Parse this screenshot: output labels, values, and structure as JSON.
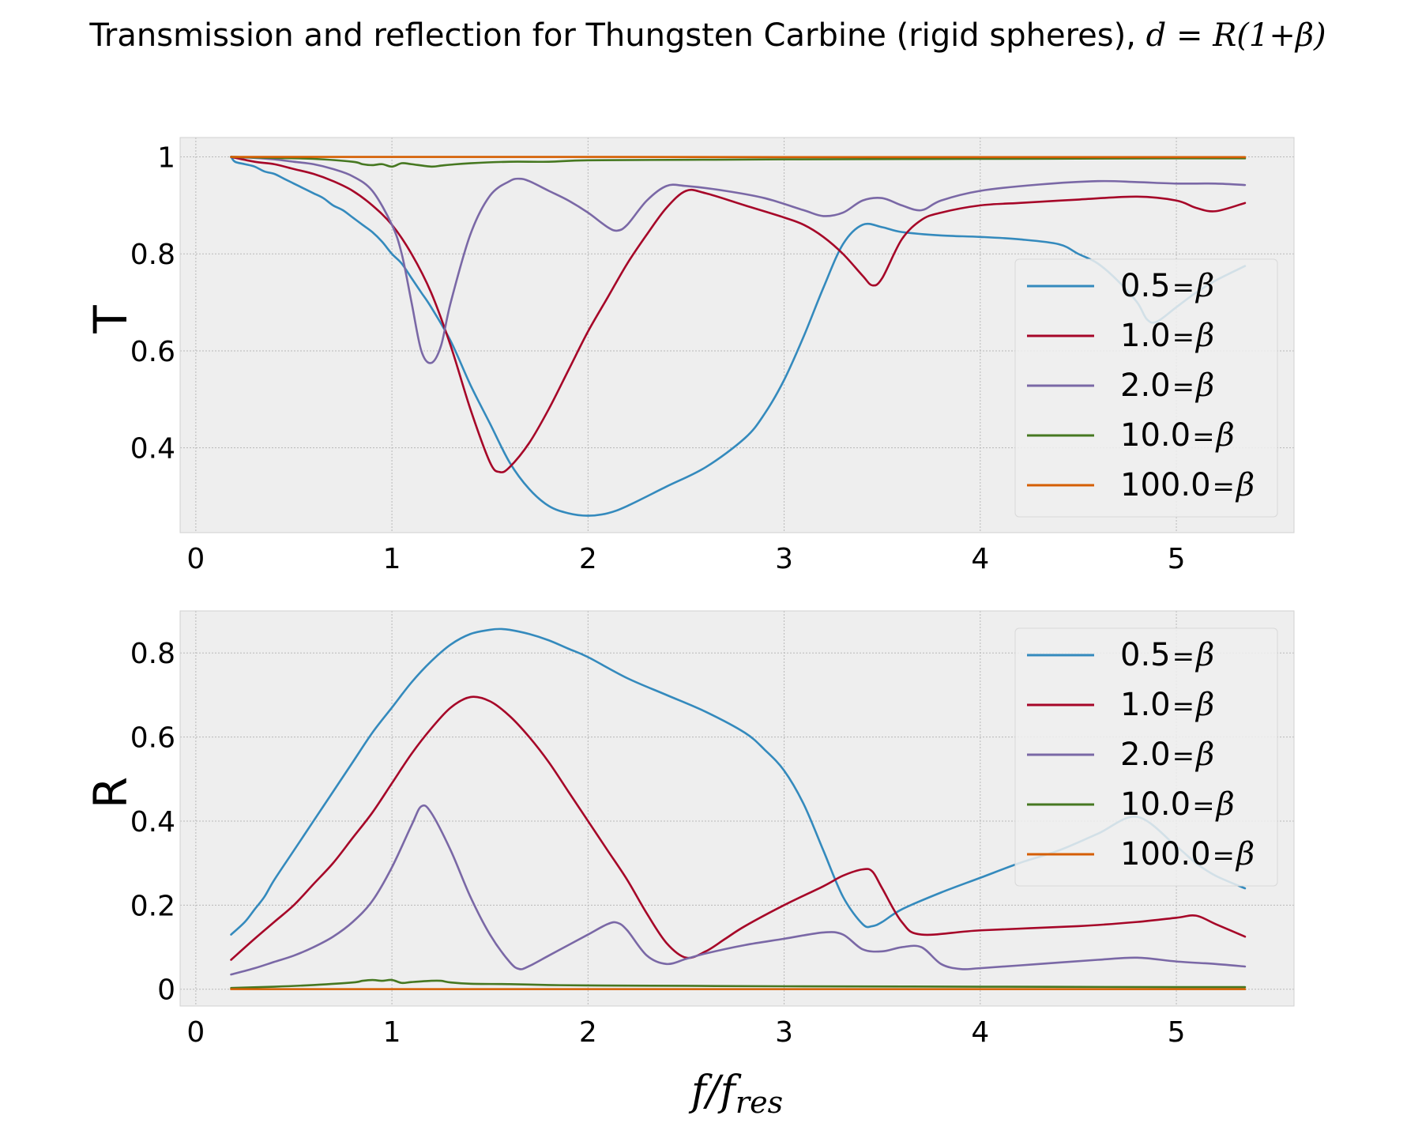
{
  "figure": {
    "title_text": "Transmission and reflection for Thungsten Carbine (rigid spheres), ",
    "title_math": "d = R(1+β)"
  },
  "chart_data": [
    {
      "type": "line",
      "ylabel": "T",
      "xlabel": "",
      "xlim": [
        -0.08,
        5.6
      ],
      "ylim": [
        0.225,
        1.04
      ],
      "xticks": [
        0,
        1,
        2,
        3,
        4,
        5
      ],
      "yticks": [
        0.4,
        0.6,
        0.8,
        1.0
      ],
      "grid": true,
      "legend_position": "lower-right",
      "series": [
        {
          "name": "0.5 = β",
          "color": "#348ABD",
          "x": [
            0.18,
            0.2,
            0.25,
            0.3,
            0.35,
            0.4,
            0.45,
            0.5,
            0.55,
            0.6,
            0.65,
            0.7,
            0.75,
            0.8,
            0.85,
            0.9,
            0.95,
            1.0,
            1.05,
            1.1,
            1.15,
            1.2,
            1.3,
            1.4,
            1.5,
            1.6,
            1.7,
            1.8,
            1.9,
            2.0,
            2.1,
            2.2,
            2.4,
            2.6,
            2.8,
            2.9,
            3.0,
            3.1,
            3.2,
            3.3,
            3.4,
            3.5,
            3.6,
            3.8,
            4.0,
            4.2,
            4.4,
            4.5,
            4.6,
            4.7,
            4.8,
            4.85,
            4.9,
            5.0,
            5.1,
            5.2,
            5.35
          ],
          "y": [
            1.0,
            0.99,
            0.985,
            0.98,
            0.97,
            0.965,
            0.955,
            0.945,
            0.935,
            0.925,
            0.915,
            0.9,
            0.89,
            0.875,
            0.86,
            0.845,
            0.825,
            0.8,
            0.78,
            0.75,
            0.72,
            0.69,
            0.62,
            0.53,
            0.45,
            0.37,
            0.315,
            0.28,
            0.265,
            0.26,
            0.265,
            0.28,
            0.32,
            0.36,
            0.42,
            0.47,
            0.54,
            0.63,
            0.73,
            0.82,
            0.86,
            0.855,
            0.845,
            0.838,
            0.835,
            0.83,
            0.82,
            0.8,
            0.78,
            0.745,
            0.7,
            0.665,
            0.66,
            0.69,
            0.72,
            0.745,
            0.775
          ]
        },
        {
          "name": "1.0 = β",
          "color": "#A60628",
          "x": [
            0.18,
            0.3,
            0.4,
            0.5,
            0.6,
            0.7,
            0.8,
            0.9,
            1.0,
            1.1,
            1.2,
            1.3,
            1.4,
            1.5,
            1.55,
            1.6,
            1.7,
            1.8,
            1.9,
            2.0,
            2.1,
            2.2,
            2.3,
            2.4,
            2.5,
            2.6,
            2.8,
            3.0,
            3.1,
            3.2,
            3.3,
            3.4,
            3.45,
            3.5,
            3.6,
            3.7,
            3.8,
            4.0,
            4.2,
            4.5,
            4.8,
            5.0,
            5.1,
            5.2,
            5.35
          ],
          "y": [
            1.0,
            0.99,
            0.985,
            0.975,
            0.965,
            0.95,
            0.93,
            0.9,
            0.86,
            0.8,
            0.72,
            0.61,
            0.48,
            0.37,
            0.35,
            0.36,
            0.41,
            0.48,
            0.56,
            0.64,
            0.71,
            0.78,
            0.84,
            0.895,
            0.93,
            0.925,
            0.9,
            0.875,
            0.86,
            0.835,
            0.8,
            0.755,
            0.735,
            0.75,
            0.83,
            0.87,
            0.885,
            0.9,
            0.905,
            0.912,
            0.918,
            0.91,
            0.895,
            0.888,
            0.905
          ]
        },
        {
          "name": "2.0 = β",
          "color": "#7A68A6",
          "x": [
            0.18,
            0.3,
            0.4,
            0.5,
            0.6,
            0.7,
            0.8,
            0.9,
            1.0,
            1.05,
            1.1,
            1.15,
            1.2,
            1.25,
            1.3,
            1.4,
            1.5,
            1.6,
            1.65,
            1.7,
            1.8,
            1.9,
            2.0,
            2.1,
            2.15,
            2.2,
            2.3,
            2.4,
            2.5,
            2.7,
            2.9,
            3.1,
            3.2,
            3.3,
            3.4,
            3.5,
            3.6,
            3.7,
            3.8,
            4.0,
            4.3,
            4.6,
            4.8,
            5.0,
            5.2,
            5.35
          ],
          "y": [
            1.0,
            0.998,
            0.995,
            0.99,
            0.985,
            0.975,
            0.96,
            0.93,
            0.86,
            0.8,
            0.7,
            0.6,
            0.575,
            0.61,
            0.7,
            0.84,
            0.92,
            0.95,
            0.955,
            0.95,
            0.93,
            0.91,
            0.885,
            0.855,
            0.848,
            0.86,
            0.91,
            0.94,
            0.94,
            0.93,
            0.915,
            0.89,
            0.878,
            0.885,
            0.91,
            0.915,
            0.9,
            0.89,
            0.91,
            0.93,
            0.943,
            0.95,
            0.948,
            0.945,
            0.945,
            0.942
          ]
        },
        {
          "name": "10.0 = β",
          "color": "#467821",
          "x": [
            0.18,
            0.4,
            0.6,
            0.8,
            0.85,
            0.9,
            0.95,
            1.0,
            1.05,
            1.1,
            1.2,
            1.25,
            1.3,
            1.4,
            1.6,
            1.8,
            2.0,
            2.5,
            3.0,
            4.0,
            5.0,
            5.35
          ],
          "y": [
            1.0,
            0.998,
            0.996,
            0.99,
            0.985,
            0.983,
            0.985,
            0.98,
            0.987,
            0.985,
            0.98,
            0.982,
            0.984,
            0.987,
            0.99,
            0.99,
            0.993,
            0.994,
            0.995,
            0.996,
            0.997,
            0.997
          ]
        },
        {
          "name": "100.0 = β",
          "color": "#D55E00",
          "x": [
            0.18,
            1.0,
            2.0,
            3.0,
            4.0,
            5.0,
            5.35
          ],
          "y": [
            1.0,
            1.0,
            1.0,
            0.9995,
            0.9995,
            0.9995,
            0.9995
          ]
        }
      ]
    },
    {
      "type": "line",
      "ylabel": "R",
      "xlabel": "f/f_res",
      "xlim": [
        -0.08,
        5.6
      ],
      "ylim": [
        -0.04,
        0.9
      ],
      "xticks": [
        0,
        1,
        2,
        3,
        4,
        5
      ],
      "yticks": [
        0.0,
        0.2,
        0.4,
        0.6,
        0.8
      ],
      "grid": true,
      "legend_position": "upper-right",
      "series": [
        {
          "name": "0.5 = β",
          "color": "#348ABD",
          "x": [
            0.18,
            0.25,
            0.3,
            0.35,
            0.4,
            0.5,
            0.6,
            0.7,
            0.8,
            0.9,
            1.0,
            1.1,
            1.2,
            1.3,
            1.4,
            1.5,
            1.55,
            1.6,
            1.7,
            1.8,
            1.9,
            2.0,
            2.2,
            2.4,
            2.6,
            2.8,
            2.9,
            3.0,
            3.1,
            3.2,
            3.3,
            3.4,
            3.45,
            3.5,
            3.6,
            3.8,
            4.0,
            4.2,
            4.4,
            4.6,
            4.8,
            5.0,
            5.1,
            5.2,
            5.35
          ],
          "y": [
            0.13,
            0.16,
            0.19,
            0.22,
            0.26,
            0.33,
            0.4,
            0.47,
            0.54,
            0.61,
            0.67,
            0.73,
            0.78,
            0.82,
            0.845,
            0.855,
            0.857,
            0.855,
            0.845,
            0.83,
            0.81,
            0.79,
            0.74,
            0.7,
            0.66,
            0.61,
            0.57,
            0.52,
            0.44,
            0.33,
            0.22,
            0.155,
            0.15,
            0.16,
            0.19,
            0.23,
            0.265,
            0.3,
            0.33,
            0.37,
            0.41,
            0.34,
            0.3,
            0.27,
            0.24
          ]
        },
        {
          "name": "1.0 = β",
          "color": "#A60628",
          "x": [
            0.18,
            0.3,
            0.4,
            0.5,
            0.6,
            0.7,
            0.8,
            0.9,
            1.0,
            1.1,
            1.2,
            1.3,
            1.4,
            1.5,
            1.6,
            1.7,
            1.8,
            1.9,
            2.0,
            2.1,
            2.2,
            2.3,
            2.4,
            2.5,
            2.6,
            2.7,
            2.8,
            3.0,
            3.2,
            3.3,
            3.4,
            3.45,
            3.5,
            3.6,
            3.7,
            4.0,
            4.5,
            4.8,
            5.0,
            5.1,
            5.2,
            5.35
          ],
          "y": [
            0.07,
            0.12,
            0.16,
            0.2,
            0.25,
            0.3,
            0.36,
            0.42,
            0.49,
            0.56,
            0.62,
            0.67,
            0.695,
            0.685,
            0.65,
            0.6,
            0.54,
            0.47,
            0.4,
            0.33,
            0.26,
            0.18,
            0.11,
            0.075,
            0.09,
            0.12,
            0.15,
            0.2,
            0.245,
            0.27,
            0.285,
            0.28,
            0.24,
            0.16,
            0.13,
            0.14,
            0.15,
            0.16,
            0.17,
            0.175,
            0.155,
            0.125
          ]
        },
        {
          "name": "2.0 = β",
          "color": "#7A68A6",
          "x": [
            0.18,
            0.3,
            0.4,
            0.5,
            0.6,
            0.7,
            0.8,
            0.9,
            1.0,
            1.1,
            1.15,
            1.2,
            1.3,
            1.4,
            1.5,
            1.6,
            1.65,
            1.7,
            1.8,
            1.9,
            2.0,
            2.1,
            2.15,
            2.2,
            2.3,
            2.4,
            2.5,
            2.6,
            2.8,
            3.0,
            3.2,
            3.3,
            3.4,
            3.5,
            3.6,
            3.7,
            3.8,
            3.9,
            4.0,
            4.3,
            4.6,
            4.8,
            5.0,
            5.2,
            5.35
          ],
          "y": [
            0.035,
            0.05,
            0.065,
            0.08,
            0.1,
            0.125,
            0.16,
            0.21,
            0.29,
            0.39,
            0.435,
            0.42,
            0.33,
            0.22,
            0.13,
            0.065,
            0.048,
            0.055,
            0.08,
            0.105,
            0.13,
            0.155,
            0.158,
            0.14,
            0.08,
            0.06,
            0.072,
            0.085,
            0.105,
            0.12,
            0.135,
            0.13,
            0.095,
            0.09,
            0.1,
            0.1,
            0.06,
            0.048,
            0.05,
            0.06,
            0.07,
            0.075,
            0.066,
            0.06,
            0.054
          ]
        },
        {
          "name": "10.0 = β",
          "color": "#467821",
          "x": [
            0.18,
            0.4,
            0.6,
            0.8,
            0.85,
            0.9,
            0.95,
            1.0,
            1.05,
            1.1,
            1.2,
            1.25,
            1.3,
            1.4,
            1.6,
            1.8,
            2.0,
            2.5,
            3.0,
            4.0,
            5.0,
            5.35
          ],
          "y": [
            0.003,
            0.006,
            0.01,
            0.016,
            0.02,
            0.022,
            0.02,
            0.022,
            0.015,
            0.017,
            0.02,
            0.02,
            0.016,
            0.013,
            0.012,
            0.01,
            0.009,
            0.008,
            0.007,
            0.006,
            0.005,
            0.005
          ]
        },
        {
          "name": "100.0 = β",
          "color": "#D55E00",
          "x": [
            0.18,
            1.0,
            2.0,
            3.0,
            4.0,
            5.0,
            5.35
          ],
          "y": [
            0.0002,
            0.0002,
            0.0002,
            0.0002,
            0.0002,
            0.0002,
            0.0002
          ]
        }
      ]
    }
  ]
}
